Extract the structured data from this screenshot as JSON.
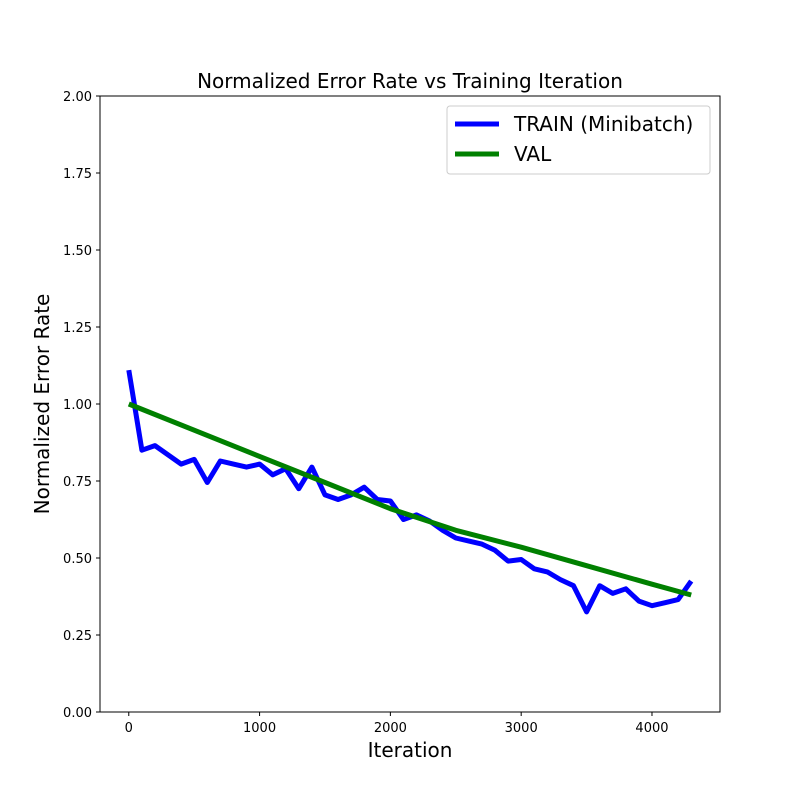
{
  "chart_data": {
    "type": "line",
    "title": "Normalized Error Rate vs Training Iteration",
    "xlabel": "Iteration",
    "ylabel": "Normalized Error Rate",
    "xlim": [
      -220,
      4520
    ],
    "ylim": [
      0,
      2.0
    ],
    "x_ticks": [
      0,
      1000,
      2000,
      3000,
      4000
    ],
    "x_tick_labels": [
      "0",
      "1000",
      "2000",
      "3000",
      "4000"
    ],
    "y_ticks": [
      0,
      0.25,
      0.5,
      0.75,
      1.0,
      1.25,
      1.5,
      1.75,
      2.0
    ],
    "y_tick_labels": [
      "0.00",
      "0.25",
      "0.50",
      "0.75",
      "1.00",
      "1.25",
      "1.50",
      "1.75",
      "2.00"
    ],
    "grid": false,
    "legend_position": "top-right",
    "series": [
      {
        "name": "TRAIN (Minibatch)",
        "color": "#0000ff",
        "x": [
          0,
          100,
          200,
          300,
          400,
          500,
          600,
          700,
          800,
          900,
          1000,
          1100,
          1200,
          1300,
          1400,
          1500,
          1600,
          1700,
          1800,
          1900,
          2000,
          2100,
          2200,
          2300,
          2400,
          2500,
          2600,
          2700,
          2800,
          2900,
          3000,
          3100,
          3200,
          3300,
          3400,
          3500,
          3600,
          3700,
          3800,
          3900,
          4000,
          4100,
          4200,
          4300
        ],
        "y": [
          1.11,
          0.85,
          0.865,
          0.835,
          0.805,
          0.82,
          0.745,
          0.815,
          0.805,
          0.795,
          0.805,
          0.77,
          0.79,
          0.725,
          0.795,
          0.705,
          0.69,
          0.705,
          0.73,
          0.69,
          0.685,
          0.625,
          0.64,
          0.62,
          0.59,
          0.565,
          0.555,
          0.545,
          0.525,
          0.49,
          0.495,
          0.465,
          0.455,
          0.43,
          0.41,
          0.325,
          0.41,
          0.385,
          0.4,
          0.36,
          0.345,
          0.355,
          0.365,
          0.425
        ]
      },
      {
        "name": "VAL",
        "color": "#008000",
        "x": [
          0,
          500,
          1000,
          1500,
          2000,
          2500,
          3000,
          3500,
          4000,
          4300
        ],
        "y": [
          1.0,
          0.915,
          0.83,
          0.745,
          0.66,
          0.59,
          0.535,
          0.475,
          0.415,
          0.38
        ]
      }
    ]
  }
}
